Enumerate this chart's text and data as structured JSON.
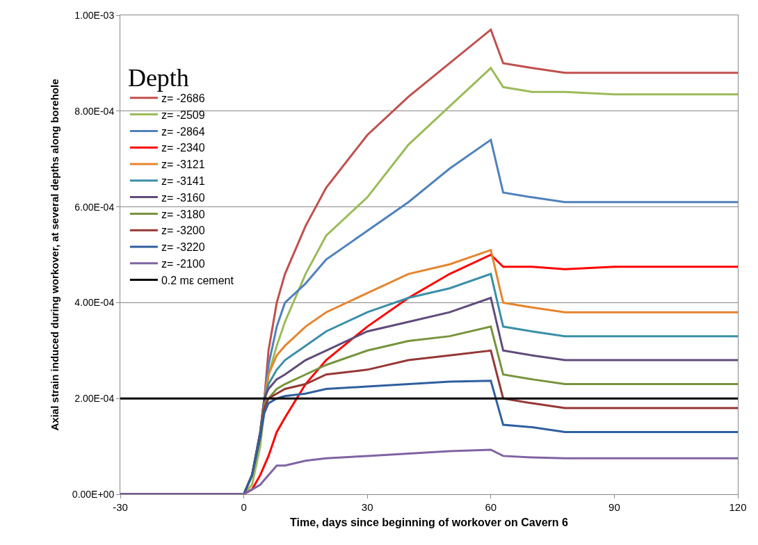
{
  "chart_data": {
    "type": "line",
    "xlabel": "Time, days since beginning of workover on Cavern 6",
    "ylabel": "Axial strain induced during workover, at several depths along borehole",
    "legend_title": "Depth",
    "x": [
      -30,
      0,
      2,
      4,
      5,
      6,
      8,
      10,
      15,
      20,
      30,
      40,
      50,
      60,
      63,
      70,
      78,
      90,
      100,
      120
    ],
    "series": [
      {
        "name": "z= -2686",
        "color": "#c0504d",
        "values": [
          0,
          0,
          4e-05,
          0.00013,
          0.0002,
          0.0003,
          0.0004,
          0.00046,
          0.00056,
          0.00064,
          0.00075,
          0.00083,
          0.0009,
          0.00097,
          0.0009,
          0.00089,
          0.00088,
          0.00088,
          0.00088,
          0.00088
        ]
      },
      {
        "name": "z= -2509",
        "color": "#9bbb59",
        "values": [
          0,
          0,
          2e-05,
          0.0001,
          0.00018,
          0.00025,
          0.00031,
          0.00036,
          0.00046,
          0.00054,
          0.00062,
          0.00073,
          0.00081,
          0.00089,
          0.00085,
          0.00084,
          0.00084,
          0.000835,
          0.000835,
          0.000835
        ]
      },
      {
        "name": "z= -2864",
        "color": "#4f81bd",
        "values": [
          0,
          0,
          4e-05,
          0.00013,
          0.0002,
          0.00027,
          0.00035,
          0.0004,
          0.00044,
          0.00049,
          0.00055,
          0.00061,
          0.00068,
          0.00074,
          0.00063,
          0.00062,
          0.00061,
          0.00061,
          0.00061,
          0.00061
        ]
      },
      {
        "name": "z= -2340",
        "color": "#ff0000",
        "values": [
          0,
          0,
          1e-05,
          4e-05,
          6e-05,
          8e-05,
          0.00013,
          0.00016,
          0.00023,
          0.00028,
          0.00035,
          0.00041,
          0.00046,
          0.0005,
          0.000475,
          0.000475,
          0.00047,
          0.000475,
          0.000475,
          0.000475
        ]
      },
      {
        "name": "z= -3121",
        "color": "#e5852f",
        "values": [
          null,
          null,
          null,
          0.00013,
          0.0002,
          0.00025,
          0.00029,
          0.00031,
          0.00035,
          0.00038,
          0.00042,
          0.00046,
          0.00048,
          0.00051,
          0.0004,
          0.00039,
          0.00038,
          0.00038,
          0.00038,
          0.00038
        ]
      },
      {
        "name": "z= -3141",
        "color": "#3a8fa8",
        "values": [
          null,
          null,
          4e-05,
          0.00013,
          0.0002,
          0.00023,
          0.00026,
          0.00028,
          0.00031,
          0.00034,
          0.00038,
          0.00041,
          0.00043,
          0.00046,
          0.00035,
          0.00034,
          0.00033,
          0.00033,
          0.00033,
          0.00033
        ]
      },
      {
        "name": "z= -3160",
        "color": "#604a7b",
        "values": [
          0,
          0,
          4e-05,
          0.00013,
          0.0002,
          0.00022,
          0.00024,
          0.00025,
          0.00028,
          0.0003,
          0.00034,
          0.00036,
          0.00038,
          0.00041,
          0.0003,
          0.00029,
          0.00028,
          0.00028,
          0.00028,
          0.00028
        ]
      },
      {
        "name": "z= -3180",
        "color": "#77933c",
        "values": [
          0,
          0,
          4e-05,
          0.00012,
          0.00019,
          0.0002,
          0.00022,
          0.00023,
          0.00025,
          0.00027,
          0.0003,
          0.00032,
          0.00033,
          0.00035,
          0.00025,
          0.00024,
          0.00023,
          0.00023,
          0.00023,
          0.00023
        ]
      },
      {
        "name": "z= -3200",
        "color": "#953735",
        "values": [
          0,
          0,
          4e-05,
          0.00012,
          0.00018,
          0.0002,
          0.00021,
          0.00022,
          0.00023,
          0.00025,
          0.00026,
          0.00028,
          0.00029,
          0.0003,
          0.0002,
          0.00019,
          0.00018,
          0.00018,
          0.00018,
          0.00018
        ]
      },
      {
        "name": "z= -3220",
        "color": "#2e5f9e",
        "values": [
          0,
          0,
          4e-05,
          0.00012,
          0.00017,
          0.00019,
          0.0002,
          0.000205,
          0.00021,
          0.00022,
          0.000225,
          0.00023,
          0.000235,
          0.000237,
          0.000145,
          0.00014,
          0.00013,
          0.00013,
          0.00013,
          0.00013
        ]
      },
      {
        "name": "z= -2100",
        "color": "#8064a2",
        "values": [
          0,
          0,
          1e-05,
          2e-05,
          3e-05,
          4e-05,
          6e-05,
          6e-05,
          7e-05,
          7.5e-05,
          8e-05,
          8.5e-05,
          9e-05,
          9.3e-05,
          8e-05,
          7.7e-05,
          7.5e-05,
          7.5e-05,
          7.5e-05,
          7.5e-05
        ]
      },
      {
        "name": "0.2 mε cement",
        "color": "#000000",
        "x": [
          -30,
          120
        ],
        "values": [
          0.0002,
          0.0002
        ]
      }
    ],
    "xlim": [
      -30,
      120
    ],
    "xticks": [
      -30,
      0,
      30,
      60,
      90,
      120
    ],
    "ylim": [
      0,
      0.001
    ],
    "yticks": [
      {
        "value": 0,
        "label": "0.00E+00"
      },
      {
        "value": 0.0002,
        "label": "2.00E-04"
      },
      {
        "value": 0.0004,
        "label": "4.00E-04"
      },
      {
        "value": 0.0006,
        "label": "6.00E-04"
      },
      {
        "value": 0.0008,
        "label": "8.00E-04"
      },
      {
        "value": 0.001,
        "label": "1.00E-03"
      }
    ],
    "grid": "y",
    "legend": "top left",
    "marker": "none",
    "line_style": "solid"
  }
}
